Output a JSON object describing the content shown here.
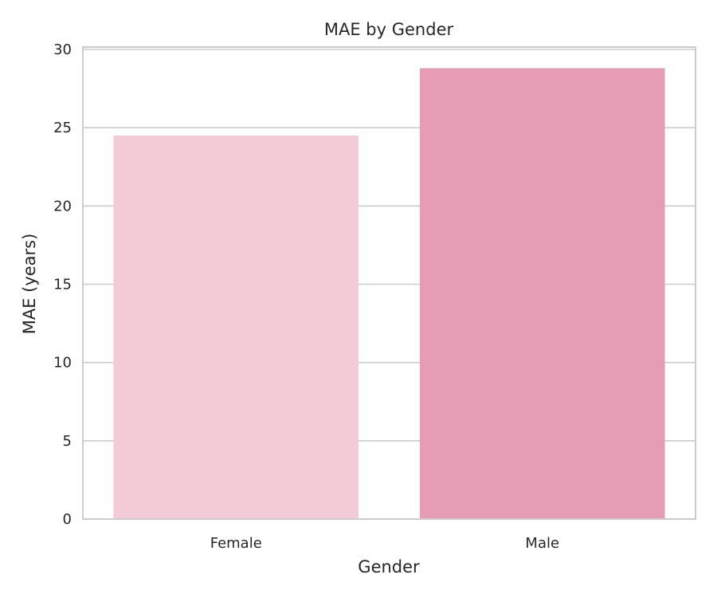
{
  "chart_data": {
    "type": "bar",
    "title": "MAE by Gender",
    "xlabel": "Gender",
    "ylabel": "MAE (years)",
    "categories": [
      "Female",
      "Male"
    ],
    "values": [
      24.5,
      28.8
    ],
    "ylim": [
      0,
      30
    ],
    "yticks": [
      "0",
      "5",
      "10",
      "15",
      "20",
      "25",
      "30"
    ],
    "grid": true,
    "colors": [
      "#f3cbd7",
      "#e69cb5"
    ],
    "grid_color": "#cccccc",
    "spine_color": "#cccccc"
  }
}
